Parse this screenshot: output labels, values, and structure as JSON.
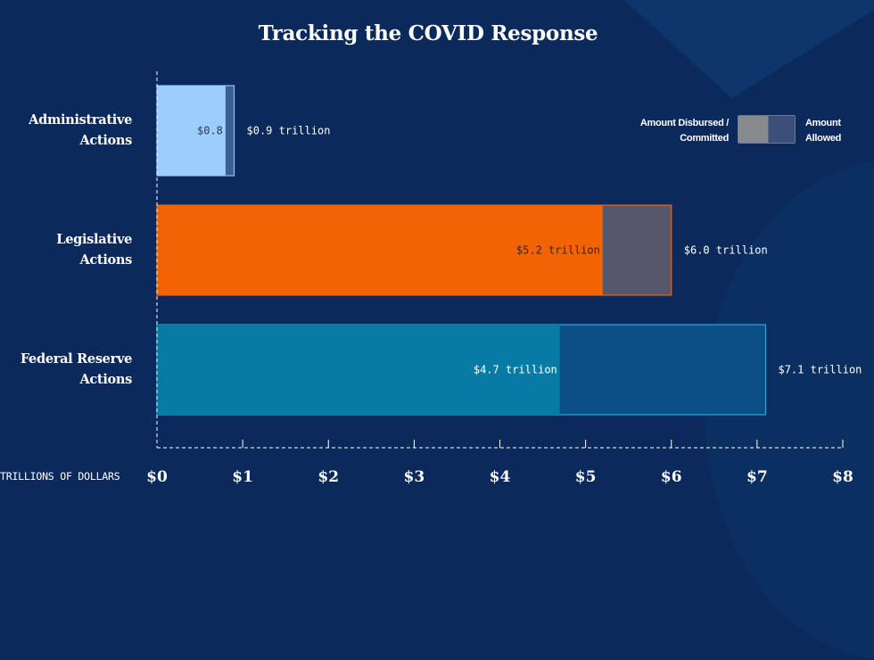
{
  "chart_data": {
    "type": "bar",
    "orientation": "horizontal",
    "stacked_overlay": true,
    "title": "Tracking the COVID Response",
    "xlabel": "TRILLIONS OF DOLLARS",
    "ylabel": "",
    "xlim": [
      0,
      8
    ],
    "x_ticks": [
      0,
      1,
      2,
      3,
      4,
      5,
      6,
      7,
      8
    ],
    "x_tick_labels": [
      "$0",
      "$1",
      "$2",
      "$3",
      "$4",
      "$5",
      "$6",
      "$7",
      "$8"
    ],
    "grid": false,
    "legend": {
      "placement": "top-right",
      "entries": [
        {
          "name": "Amount Disbursed / Committed",
          "line1": "Amount Disbursed /",
          "line2": "Committed",
          "color": "#888a8e"
        },
        {
          "name": "Amount Allowed",
          "line1": "Amount",
          "line2": "Allowed",
          "color": "#3b4f78"
        }
      ]
    },
    "categories": [
      {
        "line1": "Administrative",
        "line2": "Actions"
      },
      {
        "line1": "Legislative",
        "line2": "Actions"
      },
      {
        "line1": "Federal Reserve",
        "line2": "Actions"
      }
    ],
    "series": [
      {
        "name": "Amount Disbursed / Committed",
        "values": [
          0.8,
          5.2,
          4.7
        ],
        "labels": [
          "$0.8",
          "$5.2 trillion",
          "$4.7 trillion"
        ],
        "colors": [
          "#9dcdfd",
          "#f26305",
          "#087ba4"
        ],
        "label_colors": [
          "#2b3a55",
          "#3a2410",
          "#ffffff"
        ]
      },
      {
        "name": "Amount Allowed",
        "values": [
          0.9,
          6.0,
          7.1
        ],
        "labels": [
          "$0.9 trillion",
          "$6.0 trillion",
          "$7.1 trillion"
        ],
        "colors": [
          "#3b5f93",
          "#56576b",
          "#0c4f86"
        ],
        "border_colors": [
          "#8fbef0",
          "#e0651a",
          "#2fa4dc"
        ]
      }
    ]
  }
}
